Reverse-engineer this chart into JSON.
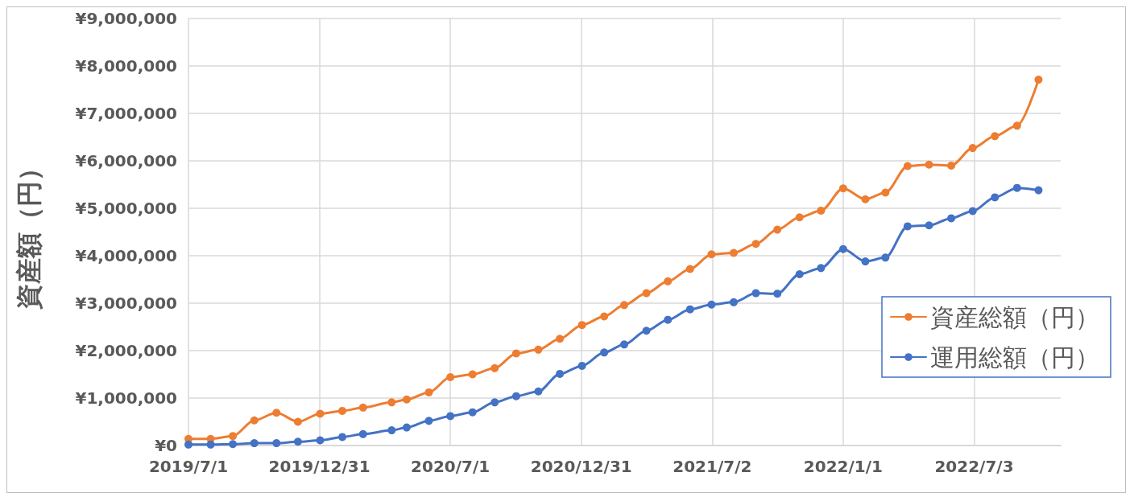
{
  "chart_data": {
    "type": "line",
    "ylabel": "資産額（円）",
    "x": [
      "2019-07-01",
      "2019-08-01",
      "2019-09-01",
      "2019-10-01",
      "2019-11-01",
      "2019-12-01",
      "2020-01-01",
      "2020-02-01",
      "2020-03-01",
      "2020-04-10",
      "2020-05-01",
      "2020-06-01",
      "2020-07-01",
      "2020-08-01",
      "2020-09-01",
      "2020-10-01",
      "2020-11-01",
      "2020-12-01",
      "2021-01-01",
      "2021-02-01",
      "2021-03-01",
      "2021-04-01",
      "2021-05-01",
      "2021-06-01",
      "2021-07-01",
      "2021-08-01",
      "2021-09-01",
      "2021-10-01",
      "2021-11-01",
      "2021-12-01",
      "2022-01-01",
      "2022-02-01",
      "2022-03-01",
      "2022-04-01",
      "2022-05-01",
      "2022-06-01",
      "2022-07-01",
      "2022-08-01",
      "2022-09-01",
      "2022-10-01"
    ],
    "series": [
      {
        "name": "資産総額（円）",
        "color": "#ed7d31",
        "values": [
          140000,
          140000,
          200000,
          530000,
          690000,
          500000,
          670000,
          730000,
          800000,
          910000,
          970000,
          1120000,
          1440000,
          1500000,
          1630000,
          1940000,
          2020000,
          2250000,
          2540000,
          2720000,
          2960000,
          3210000,
          3460000,
          3720000,
          4030000,
          4060000,
          4250000,
          4550000,
          4810000,
          4950000,
          5420000,
          5190000,
          5330000,
          5890000,
          5920000,
          5900000,
          6270000,
          6520000,
          6740000,
          7710000
        ]
      },
      {
        "name": "運用総額（円）",
        "color": "#4472c4",
        "values": [
          20000,
          20000,
          30000,
          50000,
          50000,
          80000,
          110000,
          180000,
          240000,
          320000,
          380000,
          520000,
          620000,
          700000,
          910000,
          1040000,
          1140000,
          1510000,
          1680000,
          1960000,
          2130000,
          2420000,
          2650000,
          2870000,
          2970000,
          3020000,
          3210000,
          3200000,
          3610000,
          3740000,
          4140000,
          3880000,
          3960000,
          4620000,
          4640000,
          4790000,
          4940000,
          5230000,
          5430000,
          5380000
        ]
      }
    ],
    "xlim": [
      "2019-07-01",
      "2022-11-01"
    ],
    "xticks": [
      {
        "value": "2019-07-01",
        "label": "2019/7/1"
      },
      {
        "value": "2019-12-31",
        "label": "2019/12/31"
      },
      {
        "value": "2020-07-01",
        "label": "2020/7/1"
      },
      {
        "value": "2020-12-31",
        "label": "2020/12/31"
      },
      {
        "value": "2021-07-02",
        "label": "2021/7/2"
      },
      {
        "value": "2022-01-01",
        "label": "2022/1/1"
      },
      {
        "value": "2022-07-03",
        "label": "2022/7/3"
      }
    ],
    "ylim": [
      0,
      9000000
    ],
    "yticks": [
      {
        "value": 0,
        "label": "¥0"
      },
      {
        "value": 1000000,
        "label": "¥1,000,000"
      },
      {
        "value": 2000000,
        "label": "¥2,000,000"
      },
      {
        "value": 3000000,
        "label": "¥3,000,000"
      },
      {
        "value": 4000000,
        "label": "¥4,000,000"
      },
      {
        "value": 5000000,
        "label": "¥5,000,000"
      },
      {
        "value": 6000000,
        "label": "¥6,000,000"
      },
      {
        "value": 7000000,
        "label": "¥7,000,000"
      },
      {
        "value": 8000000,
        "label": "¥8,000,000"
      },
      {
        "value": 9000000,
        "label": "¥9,000,000"
      }
    ],
    "grid": true,
    "legend": "right",
    "marker": "circle",
    "line_style": "solid"
  }
}
